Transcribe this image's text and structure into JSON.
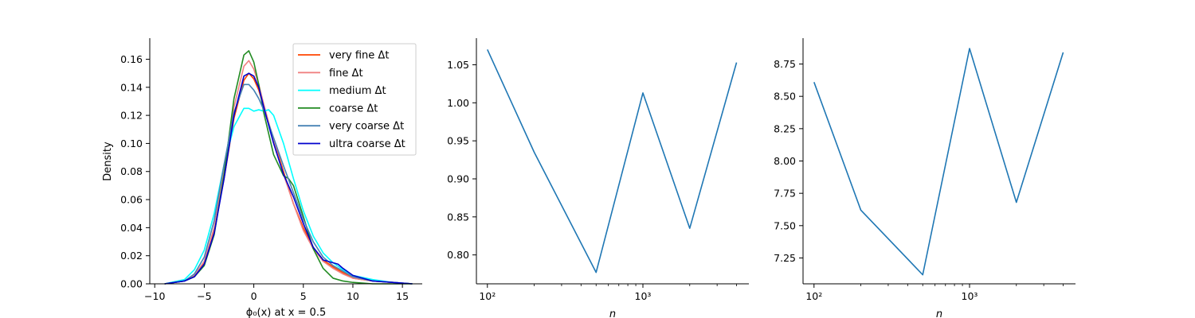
{
  "chart_data": [
    {
      "type": "line",
      "title": "",
      "xlabel": "ϕ₀(x) at x = 0.5",
      "ylabel": "Density",
      "xlim": [
        -10.5,
        17
      ],
      "ylim": [
        0,
        0.175
      ],
      "xticks": [
        -10,
        -5,
        0,
        5,
        10,
        15
      ],
      "yticks": [
        0.0,
        0.02,
        0.04,
        0.06,
        0.08,
        0.1,
        0.12,
        0.14,
        0.16
      ],
      "ytick_labels": [
        "0.00",
        "0.02",
        "0.04",
        "0.06",
        "0.08",
        "0.10",
        "0.12",
        "0.14",
        "0.16"
      ],
      "grid": false,
      "legend_position": "top-right",
      "series": [
        {
          "name": "very fine Δt",
          "color": "#ff4500",
          "x": [
            -9,
            -7,
            -6,
            -5,
            -4,
            -3,
            -2,
            -1,
            -0.5,
            0,
            0.5,
            1,
            2,
            3,
            4,
            5,
            6,
            7,
            8,
            9,
            10,
            12,
            14,
            16
          ],
          "y": [
            0,
            0.002,
            0.006,
            0.015,
            0.038,
            0.075,
            0.118,
            0.145,
            0.15,
            0.146,
            0.138,
            0.126,
            0.103,
            0.08,
            0.057,
            0.04,
            0.026,
            0.017,
            0.012,
            0.008,
            0.004,
            0.002,
            0.001,
            0
          ]
        },
        {
          "name": "fine Δt",
          "color": "#f08080",
          "x": [
            -9,
            -7,
            -6,
            -5,
            -4,
            -3,
            -2,
            -1,
            -0.5,
            0,
            0.5,
            1,
            2,
            3,
            4,
            5,
            6,
            7,
            8,
            9,
            10,
            12,
            14,
            16
          ],
          "y": [
            0,
            0.002,
            0.006,
            0.016,
            0.04,
            0.08,
            0.126,
            0.155,
            0.159,
            0.153,
            0.142,
            0.128,
            0.102,
            0.078,
            0.057,
            0.038,
            0.025,
            0.016,
            0.011,
            0.007,
            0.004,
            0.002,
            0.001,
            0
          ]
        },
        {
          "name": "medium Δt",
          "color": "#00ffff",
          "x": [
            -9,
            -7,
            -6,
            -5,
            -4,
            -3,
            -2,
            -1,
            -0.5,
            0,
            0.5,
            1,
            1.5,
            2,
            3,
            4,
            5,
            6,
            7,
            8,
            9,
            10,
            12,
            14,
            16
          ],
          "y": [
            0,
            0.003,
            0.01,
            0.024,
            0.05,
            0.085,
            0.112,
            0.125,
            0.125,
            0.123,
            0.124,
            0.123,
            0.124,
            0.12,
            0.1,
            0.075,
            0.052,
            0.034,
            0.022,
            0.015,
            0.01,
            0.006,
            0.003,
            0.001,
            0
          ]
        },
        {
          "name": "coarse Δt",
          "color": "#228b22",
          "x": [
            -9,
            -7,
            -6,
            -5,
            -4,
            -3,
            -2,
            -1,
            -0.5,
            0,
            0.5,
            1,
            2,
            3,
            3.5,
            4,
            5,
            6,
            7,
            8,
            9,
            10,
            12,
            14,
            16
          ],
          "y": [
            0,
            0.002,
            0.005,
            0.013,
            0.035,
            0.078,
            0.132,
            0.163,
            0.166,
            0.158,
            0.142,
            0.122,
            0.092,
            0.077,
            0.075,
            0.07,
            0.048,
            0.025,
            0.011,
            0.004,
            0.002,
            0.001,
            0,
            0,
            0
          ]
        },
        {
          "name": "very coarse Δt",
          "color": "#4682b4",
          "x": [
            -9,
            -7,
            -6,
            -5,
            -4,
            -3,
            -2,
            -1,
            -0.5,
            0,
            0.5,
            1,
            2,
            3,
            4,
            5,
            6,
            7,
            8,
            9,
            10,
            12,
            14,
            16
          ],
          "y": [
            0,
            0.002,
            0.007,
            0.019,
            0.045,
            0.085,
            0.122,
            0.142,
            0.142,
            0.138,
            0.132,
            0.124,
            0.104,
            0.084,
            0.065,
            0.046,
            0.03,
            0.019,
            0.013,
            0.009,
            0.005,
            0.002,
            0.001,
            0
          ]
        },
        {
          "name": "ultra coarse Δt",
          "color": "#0000cd",
          "x": [
            -9,
            -7,
            -6,
            -5,
            -4,
            -3,
            -2,
            -1,
            -0.5,
            0,
            0.5,
            1,
            2,
            3,
            4,
            5,
            6,
            7,
            8,
            8.5,
            9,
            10,
            12,
            14,
            16
          ],
          "y": [
            0,
            0.002,
            0.005,
            0.014,
            0.036,
            0.075,
            0.12,
            0.148,
            0.15,
            0.148,
            0.14,
            0.126,
            0.1,
            0.078,
            0.062,
            0.043,
            0.026,
            0.017,
            0.015,
            0.014,
            0.011,
            0.006,
            0.002,
            0.001,
            0
          ]
        }
      ]
    },
    {
      "type": "line",
      "title": "",
      "xlabel": "n",
      "ylabel": "",
      "xscale": "log",
      "xlim": [
        85,
        4800
      ],
      "ylim": [
        0.762,
        1.085
      ],
      "xticks": [
        100,
        1000
      ],
      "xtick_labels": [
        "10²",
        "10³"
      ],
      "yticks": [
        0.8,
        0.85,
        0.9,
        0.95,
        1.0,
        1.05
      ],
      "ytick_labels": [
        "0.80",
        "0.85",
        "0.90",
        "0.95",
        "1.00",
        "1.05"
      ],
      "grid": false,
      "series": [
        {
          "color": "#1f77b4",
          "x": [
            100,
            200,
            500,
            1000,
            2000,
            4000
          ],
          "y": [
            1.07,
            0.935,
            0.777,
            1.013,
            0.835,
            1.053
          ]
        }
      ]
    },
    {
      "type": "line",
      "title": "",
      "xlabel": "n",
      "ylabel": "",
      "xscale": "log",
      "xlim": [
        85,
        4800
      ],
      "ylim": [
        7.05,
        8.95
      ],
      "xticks": [
        100,
        1000
      ],
      "xtick_labels": [
        "10²",
        "10³"
      ],
      "yticks": [
        7.25,
        7.5,
        7.75,
        8.0,
        8.25,
        8.5,
        8.75
      ],
      "ytick_labels": [
        "7.25",
        "7.50",
        "7.75",
        "8.00",
        "8.25",
        "8.50",
        "8.75"
      ],
      "grid": false,
      "series": [
        {
          "color": "#1f77b4",
          "x": [
            100,
            200,
            500,
            1000,
            2000,
            4000
          ],
          "y": [
            8.61,
            7.62,
            7.12,
            8.87,
            7.68,
            8.84
          ]
        }
      ]
    }
  ]
}
